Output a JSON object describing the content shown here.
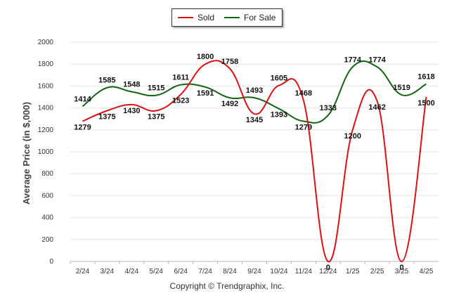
{
  "legend": {
    "sold": "Sold",
    "for_sale": "For Sale"
  },
  "credit": "Copyright © Trendgraphix, Inc.",
  "colors": {
    "sold": "#dd1111",
    "for_sale": "#116611",
    "grid": "#e6e6e6"
  },
  "chart_data": {
    "type": "line",
    "ylabel": "Average Price (in $,000)",
    "xlabel": "",
    "ylim": [
      0,
      2000
    ],
    "yticks": [
      0,
      200,
      400,
      600,
      800,
      1000,
      1200,
      1400,
      1600,
      1800,
      2000
    ],
    "grid": true,
    "legend_position": "top-center",
    "categories": [
      "2/24",
      "3/24",
      "4/24",
      "5/24",
      "6/24",
      "7/24",
      "8/24",
      "9/24",
      "10/24",
      "11/24",
      "12/24",
      "1/25",
      "2/25",
      "3/25",
      "4/25"
    ],
    "series": [
      {
        "name": "Sold",
        "color": "#dd1111",
        "values": [
          1279,
          1375,
          1430,
          1375,
          1523,
          1800,
          1758,
          1345,
          1605,
          1468,
          0,
          1200,
          1462,
          0,
          1500
        ]
      },
      {
        "name": "For Sale",
        "color": "#116611",
        "values": [
          1414,
          1585,
          1548,
          1515,
          1611,
          1591,
          1492,
          1493,
          1393,
          1279,
          1333,
          1774,
          1774,
          1519,
          1618
        ]
      }
    ]
  }
}
